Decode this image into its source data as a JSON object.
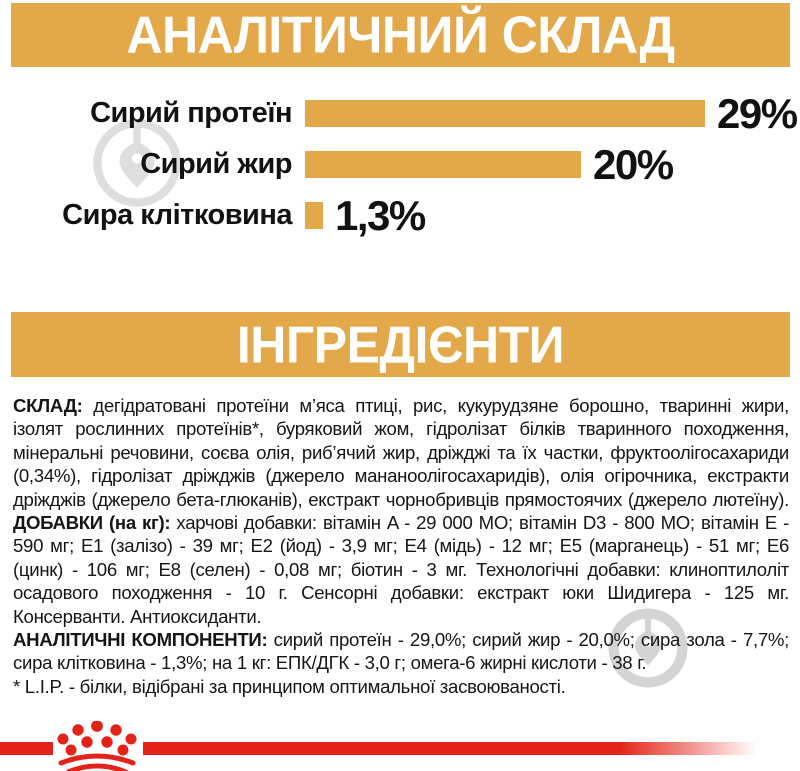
{
  "colors": {
    "gold": "#E2A84A",
    "red": "#E32319",
    "text": "#161616",
    "watermark_grey": "#9B9B9B"
  },
  "banners": {
    "analytical": "АНАЛІТИЧНИЙ СКЛАД",
    "ingredients": "ІНГРЕДІЄНТИ"
  },
  "icons": {
    "brand_logo": "royal-canin-crown",
    "watermark": "price-tag-in-circle"
  },
  "chart_data": {
    "type": "bar",
    "orientation": "horizontal",
    "title": "АНАЛІТИЧНИЙ СКЛАД",
    "categories": [
      "Сирий протеїн",
      "Сирий жир",
      "Сира клітковина"
    ],
    "values": [
      29,
      20,
      1.3
    ],
    "value_labels": [
      "29%",
      "20%",
      "1,3%"
    ],
    "xlim": [
      0,
      29
    ],
    "bar_color": "#E2A84A",
    "grid": false,
    "legend": false
  },
  "ingredients_text": {
    "paragraphs": [
      {
        "segments": [
          {
            "bold": true,
            "text": "СКЛАД:"
          },
          {
            "bold": false,
            "text": " дегідратовані протеїни м’яса птиці, рис, кукурудзяне борошно, тваринні жири, ізолят рослинних протеїнів*, буряковий жом, гідролізат білків тваринного походження, мінеральні речовини, соєва олія, риб’ячий жир, дріжджі та їх частки, фруктоолігосахариди (0,34%), гідролізат дріжджів (джерело мананоолігосахаридів), олія огірочника, екстракти дріжджів (джерело бета-глюканів), екстракт чорнобривців прямостоячих (джерело лютеїну). "
          },
          {
            "bold": true,
            "text": "ДОБАВКИ (на кг):"
          },
          {
            "bold": false,
            "text": " харчові добавки: вітамін A - 29 000 МО; вітамін D3 - 800 МО; вітамін E - 590 мг; Е1 (залізо) - 39 мг; Е2 (йод) - 3,9 мг; Е4 (мідь) - 12 мг; Е5 (марганець) - 51 мг; Е6 (цинк) - 106 мг; Е8 (селен) - 0,08 мг; біотин - 3 мг. Технологічні добавки: клиноптилоліт осадового походження - 10 г. Сенсорні добавки: екстракт юки Шидигера - 125 мг. Консерванти. Антиоксиданти."
          }
        ]
      },
      {
        "segments": [
          {
            "bold": true,
            "text": "АНАЛІТИЧНІ КОМПОНЕНТИ:"
          },
          {
            "bold": false,
            "text": " сирий протеїн - 29,0%; сирий жир - 20,0%; сира зола - 7,7%; сира клітковина - 1,3%; на 1 кг: ЕПК/ДГК - 3,0 г; омега-6 жирні кислоти - 38 г."
          }
        ]
      },
      {
        "segments": [
          {
            "bold": false,
            "text": "* L.I.P. - білки, відібрані за принципом оптимальної засвоюваності."
          }
        ]
      }
    ]
  }
}
